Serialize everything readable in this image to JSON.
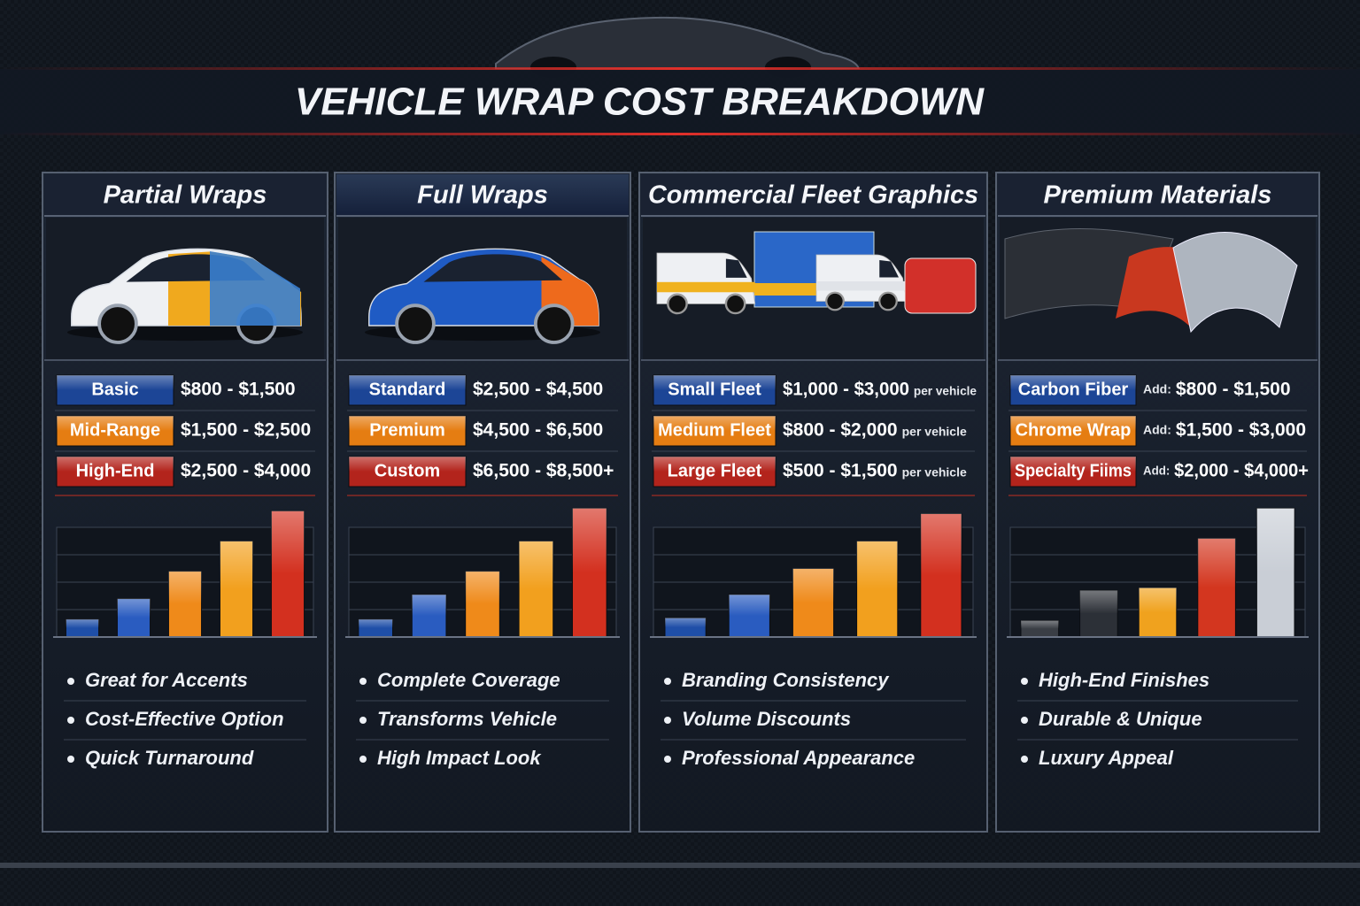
{
  "header": {
    "title": "VEHICLE WRAP COST BREAKDOWN"
  },
  "panels": [
    {
      "title": "Partial Wraps",
      "tiers": [
        {
          "label": "Basic",
          "price": "$800 - $1,500",
          "color": "#1c4596"
        },
        {
          "label": "Mid-Range",
          "price": "$1,500 - $2,500",
          "color": "#e57d12"
        },
        {
          "label": "High-End",
          "price": "$2,500 - $4,000",
          "color": "#b3241c"
        }
      ],
      "bars": [
        0.65,
        1.4,
        2.4,
        3.5,
        4.6
      ],
      "bar_colors": [
        "#1f4fa8",
        "#2a5cc0",
        "#ef8a1a",
        "#f2a01e",
        "#d3301f"
      ],
      "bullets": [
        "Great for Accents",
        "Cost-Effective Option",
        "Quick Turnaround"
      ]
    },
    {
      "title": "Full Wraps",
      "tiers": [
        {
          "label": "Standard",
          "price": "$2,500 - $4,500",
          "color": "#1c4596"
        },
        {
          "label": "Premium",
          "price": "$4,500 - $6,500",
          "color": "#e57d12"
        },
        {
          "label": "Custom",
          "price": "$6,500 - $8,500+",
          "color": "#b3241c"
        }
      ],
      "bars": [
        0.65,
        1.55,
        2.4,
        3.5,
        4.7
      ],
      "bar_colors": [
        "#1f4fa8",
        "#2a5cc0",
        "#ef8a1a",
        "#f2a01e",
        "#d3301f"
      ],
      "bullets": [
        "Complete Coverage",
        "Transforms Vehicle",
        "High Impact Look"
      ]
    },
    {
      "title": "Commercial Fleet Graphics",
      "tiers": [
        {
          "label": "Small Fleet",
          "price": "$1,000 - $3,000",
          "note": "per vehicle",
          "color": "#1c4596"
        },
        {
          "label": "Medium Fleet",
          "price": "$800 - $2,000",
          "note": "per vehicle",
          "color": "#e57d12"
        },
        {
          "label": "Large Fleet",
          "price": "$500 - $1,500",
          "note": "per vehicle",
          "color": "#b3241c"
        }
      ],
      "bars": [
        0.7,
        1.55,
        2.5,
        3.5,
        4.5
      ],
      "bar_colors": [
        "#1f4fa8",
        "#2a5cc0",
        "#ef8a1a",
        "#f2a01e",
        "#d3301f"
      ],
      "bullets": [
        "Branding Consistency",
        "Volume Discounts",
        "Professional Appearance"
      ]
    },
    {
      "title": "Premium Materials",
      "tiers": [
        {
          "label": "Carbon Fiber",
          "prefix": "Add:",
          "price": "$800 - $1,500",
          "color": "#1c4596"
        },
        {
          "label": "Chrome Wrap",
          "prefix": "Add:",
          "price": "$1,500 - $3,000",
          "color": "#e57d12"
        },
        {
          "label": "Specialty Fiims",
          "prefix": "Add:",
          "price": "$2,000 - $4,000+",
          "color": "#b3241c"
        }
      ],
      "bars": [
        0.6,
        1.7,
        1.8,
        3.6,
        4.7
      ],
      "bar_colors": [
        "#3a3e45",
        "#2c3037",
        "#f0a21e",
        "#d3361f",
        "#c9ced6"
      ],
      "bullets": [
        "High-End Finishes",
        "Durable & Unique",
        "Luxury Appeal"
      ]
    }
  ]
}
